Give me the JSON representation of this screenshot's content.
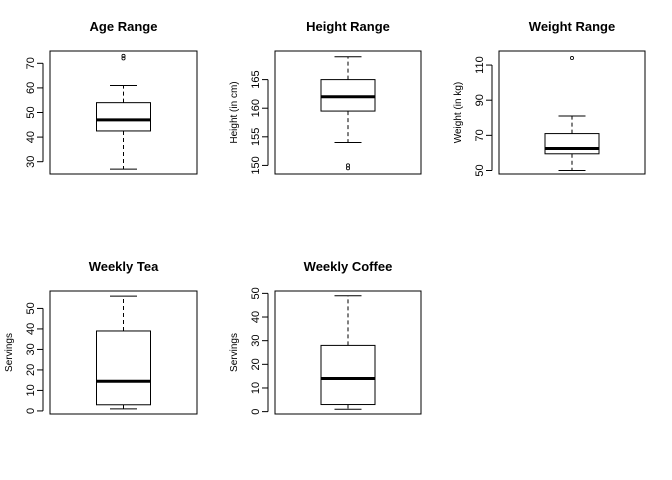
{
  "chart_data": [
    {
      "type": "boxplot",
      "title": "Age Range",
      "ylabel": "",
      "ylim": [
        25,
        75
      ],
      "yticks": [
        30,
        40,
        50,
        60,
        70
      ],
      "box": {
        "whisker_low": 27,
        "q1": 42.5,
        "median": 47,
        "q3": 54,
        "whisker_high": 61,
        "outliers": [
          72,
          73
        ]
      }
    },
    {
      "type": "boxplot",
      "title": "Height Range",
      "ylabel": "Height (in cm)",
      "ylim": [
        148.5,
        170
      ],
      "yticks": [
        150,
        155,
        160,
        165
      ],
      "box": {
        "whisker_low": 154,
        "q1": 159.5,
        "median": 162,
        "q3": 165,
        "whisker_high": 169,
        "outliers": [
          149.5,
          150
        ]
      }
    },
    {
      "type": "boxplot",
      "title": "Weight Range",
      "ylabel": "Weight (in kg)",
      "ylim": [
        48,
        118
      ],
      "yticks": [
        50,
        70,
        90,
        110
      ],
      "box": {
        "whisker_low": 50,
        "q1": 59.5,
        "median": 62.5,
        "q3": 71,
        "whisker_high": 81,
        "outliers": [
          114
        ]
      }
    },
    {
      "type": "boxplot",
      "title": "Weekly Tea",
      "ylabel": "Servings",
      "ylim": [
        -1.5,
        58.5
      ],
      "yticks": [
        0,
        10,
        20,
        30,
        40,
        50
      ],
      "box": {
        "whisker_low": 1,
        "q1": 3,
        "median": 14.5,
        "q3": 39,
        "whisker_high": 56,
        "outliers": []
      }
    },
    {
      "type": "boxplot",
      "title": "Weekly Coffee",
      "ylabel": "Servings",
      "ylim": [
        -1,
        51
      ],
      "yticks": [
        0,
        10,
        20,
        30,
        40,
        50
      ],
      "box": {
        "whisker_low": 1,
        "q1": 3,
        "median": 14,
        "q3": 28,
        "whisker_high": 49,
        "outliers": []
      }
    }
  ]
}
